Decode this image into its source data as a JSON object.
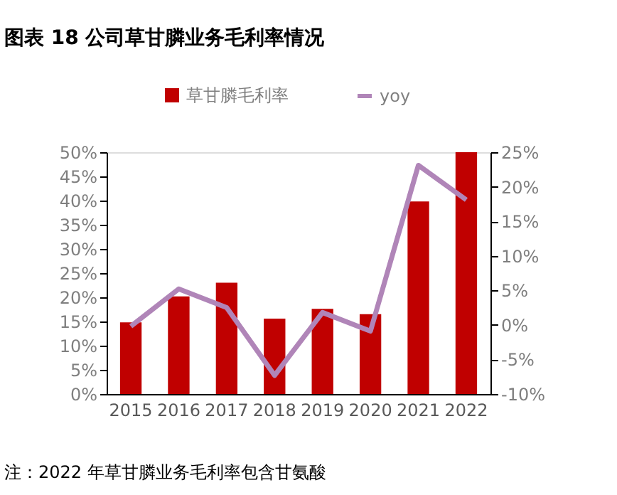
{
  "chart_data": {
    "type": "bar",
    "title": "图表 18 公司草甘膦业务毛利率情况",
    "categories": [
      "2015",
      "2016",
      "2017",
      "2018",
      "2019",
      "2020",
      "2021",
      "2022"
    ],
    "series": [
      {
        "name": "草甘膦毛利率",
        "color": "#c00000",
        "values": [
          14.8,
          20.2,
          23.0,
          15.6,
          17.6,
          16.5,
          39.8,
          50.0
        ]
      },
      {
        "name": "yoy",
        "type": "line",
        "axis": "y2",
        "color": "#b085b8",
        "values": [
          -0.2,
          5.2,
          2.5,
          -7.3,
          1.8,
          -0.9,
          23.1,
          18.1
        ]
      }
    ],
    "ylim": [
      0,
      50
    ],
    "yticks": [
      {
        "value": 0,
        "label": "0%"
      },
      {
        "value": 5,
        "label": "5%"
      },
      {
        "value": 10,
        "label": "10%"
      },
      {
        "value": 15,
        "label": "15%"
      },
      {
        "value": 20,
        "label": "20%"
      },
      {
        "value": 25,
        "label": "25%"
      },
      {
        "value": 30,
        "label": "30%"
      },
      {
        "value": 35,
        "label": "35%"
      },
      {
        "value": 40,
        "label": "40%"
      },
      {
        "value": 45,
        "label": "45%"
      },
      {
        "value": 50,
        "label": "50%"
      }
    ],
    "y2lim": [
      -10,
      25
    ],
    "y2ticks": [
      {
        "value": -10,
        "label": "-10%"
      },
      {
        "value": -5,
        "label": "-5%"
      },
      {
        "value": 0,
        "label": "0%"
      },
      {
        "value": 5,
        "label": "5%"
      },
      {
        "value": 10,
        "label": "10%"
      },
      {
        "value": 15,
        "label": "15%"
      },
      {
        "value": 20,
        "label": "20%"
      },
      {
        "value": 25,
        "label": "25%"
      }
    ],
    "legend": "top",
    "grid": false,
    "marker": "none",
    "line_style": "solid",
    "annotations": [
      "注：2022 年草甘膦业务毛利率包含甘氨酸"
    ]
  }
}
